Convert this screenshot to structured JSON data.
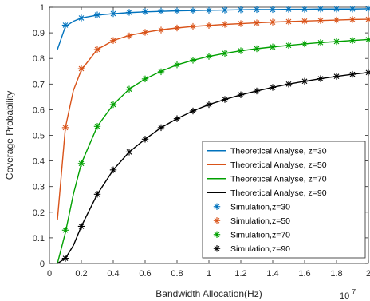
{
  "chart_data": {
    "type": "line",
    "xlabel": "Bandwidth Allocation(Hz)",
    "ylabel": "Coverage Probability",
    "xlim": [
      0,
      2
    ],
    "ylim": [
      0,
      1
    ],
    "x_multiplier_base": "10",
    "x_multiplier_exp": "7",
    "x_ticks": [
      "0",
      "0.2",
      "0.4",
      "0.6",
      "0.8",
      "1",
      "1.2",
      "1.4",
      "1.6",
      "1.8",
      "2"
    ],
    "y_ticks": [
      "0",
      "0.1",
      "0.2",
      "0.3",
      "0.4",
      "0.5",
      "0.6",
      "0.7",
      "0.8",
      "0.9",
      "1"
    ],
    "grid": false,
    "legend_position": "right",
    "series": [
      {
        "name": "Theoretical Analyse, z=30",
        "kind": "line",
        "color": "#0072BD",
        "x": [
          0.05,
          0.1,
          0.15,
          0.2,
          0.3,
          0.4,
          0.5,
          0.6,
          0.7,
          0.8,
          0.9,
          1.0,
          1.1,
          1.2,
          1.3,
          1.4,
          1.5,
          1.6,
          1.7,
          1.8,
          1.9,
          2.0
        ],
        "y": [
          0.835,
          0.925,
          0.945,
          0.958,
          0.969,
          0.975,
          0.979,
          0.982,
          0.984,
          0.986,
          0.987,
          0.988,
          0.989,
          0.99,
          0.991,
          0.991,
          0.992,
          0.992,
          0.993,
          0.993,
          0.993,
          0.994
        ]
      },
      {
        "name": "Theoretical Analyse, z=50",
        "kind": "line",
        "color": "#D95319",
        "x": [
          0.05,
          0.1,
          0.15,
          0.2,
          0.3,
          0.4,
          0.5,
          0.6,
          0.7,
          0.8,
          0.9,
          1.0,
          1.1,
          1.2,
          1.3,
          1.4,
          1.5,
          1.6,
          1.7,
          1.8,
          1.9,
          2.0
        ],
        "y": [
          0.17,
          0.53,
          0.675,
          0.755,
          0.835,
          0.87,
          0.89,
          0.902,
          0.912,
          0.919,
          0.925,
          0.929,
          0.933,
          0.936,
          0.939,
          0.942,
          0.944,
          0.946,
          0.948,
          0.95,
          0.952,
          0.953
        ]
      },
      {
        "name": "Theoretical Analyse, z=70",
        "kind": "line",
        "color": "#00A000",
        "x": [
          0.05,
          0.1,
          0.15,
          0.2,
          0.3,
          0.4,
          0.5,
          0.6,
          0.7,
          0.8,
          0.9,
          1.0,
          1.1,
          1.2,
          1.3,
          1.4,
          1.5,
          1.6,
          1.7,
          1.8,
          1.9,
          2.0
        ],
        "y": [
          0.0,
          0.12,
          0.27,
          0.39,
          0.535,
          0.62,
          0.68,
          0.72,
          0.75,
          0.775,
          0.793,
          0.808,
          0.82,
          0.83,
          0.838,
          0.845,
          0.851,
          0.857,
          0.862,
          0.866,
          0.87,
          0.874
        ]
      },
      {
        "name": "Theoretical Analyse, z=90",
        "kind": "line",
        "color": "#000000",
        "x": [
          0.05,
          0.1,
          0.15,
          0.2,
          0.3,
          0.4,
          0.5,
          0.6,
          0.7,
          0.8,
          0.9,
          1.0,
          1.1,
          1.2,
          1.3,
          1.4,
          1.5,
          1.6,
          1.7,
          1.8,
          1.9,
          2.0
        ],
        "y": [
          0.0,
          0.02,
          0.07,
          0.145,
          0.27,
          0.365,
          0.435,
          0.485,
          0.53,
          0.565,
          0.595,
          0.62,
          0.64,
          0.658,
          0.673,
          0.687,
          0.7,
          0.711,
          0.721,
          0.73,
          0.738,
          0.745
        ]
      },
      {
        "name": "Simulation,z=30",
        "kind": "marker",
        "color": "#0072BD",
        "x": [
          0.1,
          0.2,
          0.3,
          0.4,
          0.5,
          0.6,
          0.7,
          0.8,
          0.9,
          1.0,
          1.1,
          1.2,
          1.3,
          1.4,
          1.5,
          1.6,
          1.7,
          1.8,
          1.9,
          2.0
        ],
        "y": [
          0.93,
          0.958,
          0.97,
          0.975,
          0.98,
          0.983,
          0.985,
          0.986,
          0.987,
          0.988,
          0.989,
          0.99,
          0.991,
          0.991,
          0.992,
          0.992,
          0.993,
          0.993,
          0.993,
          0.994
        ]
      },
      {
        "name": "Simulation,z=50",
        "kind": "marker",
        "color": "#D95319",
        "x": [
          0.1,
          0.2,
          0.3,
          0.4,
          0.5,
          0.6,
          0.7,
          0.8,
          0.9,
          1.0,
          1.1,
          1.2,
          1.3,
          1.4,
          1.5,
          1.6,
          1.7,
          1.8,
          1.9,
          2.0
        ],
        "y": [
          0.53,
          0.76,
          0.835,
          0.87,
          0.888,
          0.902,
          0.911,
          0.919,
          0.925,
          0.929,
          0.933,
          0.936,
          0.939,
          0.942,
          0.944,
          0.946,
          0.948,
          0.95,
          0.952,
          0.953
        ]
      },
      {
        "name": "Simulation,z=70",
        "kind": "marker",
        "color": "#00A000",
        "x": [
          0.1,
          0.2,
          0.3,
          0.4,
          0.5,
          0.6,
          0.7,
          0.8,
          0.9,
          1.0,
          1.1,
          1.2,
          1.3,
          1.4,
          1.5,
          1.6,
          1.7,
          1.8,
          1.9,
          2.0
        ],
        "y": [
          0.13,
          0.39,
          0.535,
          0.62,
          0.68,
          0.72,
          0.748,
          0.775,
          0.793,
          0.808,
          0.82,
          0.83,
          0.838,
          0.845,
          0.851,
          0.857,
          0.862,
          0.866,
          0.87,
          0.874
        ]
      },
      {
        "name": "Simulation,z=90",
        "kind": "marker",
        "color": "#000000",
        "x": [
          0.1,
          0.2,
          0.3,
          0.4,
          0.5,
          0.6,
          0.7,
          0.8,
          0.9,
          1.0,
          1.1,
          1.2,
          1.3,
          1.4,
          1.5,
          1.6,
          1.7,
          1.8,
          1.9,
          2.0
        ],
        "y": [
          0.02,
          0.145,
          0.27,
          0.365,
          0.435,
          0.485,
          0.53,
          0.565,
          0.595,
          0.62,
          0.64,
          0.658,
          0.673,
          0.687,
          0.7,
          0.711,
          0.721,
          0.73,
          0.738,
          0.745
        ]
      }
    ]
  }
}
